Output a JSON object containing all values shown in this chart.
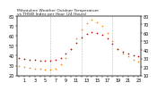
{
  "title_line1": "Milwaukee Weather Outdoor Temperature",
  "title_line2": "vs THSW Index per Hour (24 Hours)",
  "hours": [
    0,
    1,
    2,
    3,
    4,
    5,
    6,
    7,
    8,
    9,
    10,
    11,
    12,
    13,
    14,
    15,
    16,
    17,
    18,
    19,
    20,
    21,
    22,
    23
  ],
  "temp_f": [
    38,
    37,
    36,
    36,
    35,
    35,
    35,
    36,
    38,
    42,
    47,
    53,
    58,
    62,
    64,
    63,
    61,
    57,
    52,
    47,
    44,
    42,
    40,
    39
  ],
  "thsw": [
    30,
    29,
    28,
    27,
    27,
    26,
    26,
    27,
    31,
    38,
    47,
    57,
    66,
    73,
    76,
    74,
    70,
    63,
    55,
    47,
    42,
    39,
    36,
    34
  ],
  "temp_color": "#cc0000",
  "thsw_color": "#ff8800",
  "bg_color": "#ffffff",
  "grid_color": "#bbbbbb",
  "ylim_left": [
    20,
    80
  ],
  "ylim_right": [
    10,
    80
  ],
  "yticks_left": [
    20,
    30,
    40,
    50,
    60,
    70,
    80
  ],
  "yticks_right": [
    10,
    20,
    30,
    40,
    50,
    60,
    70,
    80
  ],
  "tick_fontsize": 3.5,
  "title_fontsize": 3.2,
  "marker_size": 1.5,
  "dashed_gridlines_at": [
    6,
    12,
    18
  ]
}
